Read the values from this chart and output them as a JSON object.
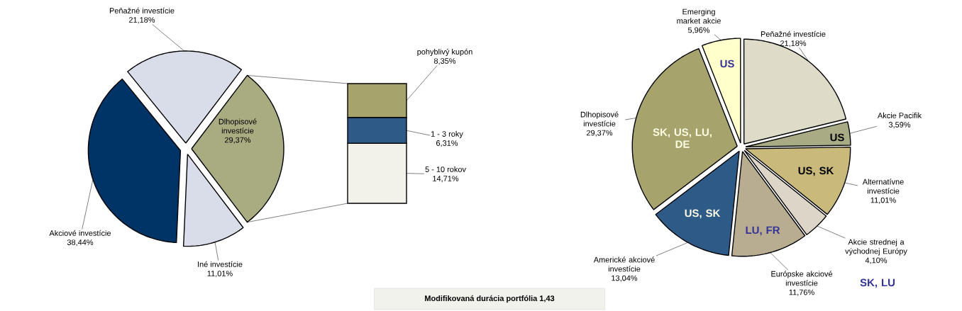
{
  "chart_data": [
    {
      "type": "pie",
      "categories": [
        "Peňažné investície",
        "Dlhopisové investície",
        "Iné investície",
        "Akciové investície"
      ],
      "values": [
        21.18,
        29.37,
        11.01,
        38.44
      ],
      "value_labels": [
        "21,18%",
        "29,37%",
        "11,01%",
        "38,44%"
      ],
      "colors": [
        "#d9dce9",
        "#a9ab80",
        "#d9dce9",
        "#003366"
      ]
    },
    {
      "type": "bar",
      "stacked": true,
      "categories": [
        null
      ],
      "series": [
        {
          "name": "5 - 10 rokov",
          "color": "#f2f2ea",
          "values": [
            14.71
          ],
          "value_labels": [
            "14,71%"
          ]
        },
        {
          "name": "1 - 3 roky",
          "color": "#2e5a87",
          "values": [
            6.31
          ],
          "value_labels": [
            "6,31%"
          ]
        },
        {
          "name": "pohyblivý kupón",
          "color": "#a6a36c",
          "values": [
            8.35
          ],
          "value_labels": [
            "8,35%"
          ]
        }
      ],
      "annotations": [
        "Modifikovaná durácia portfólia 1,43"
      ]
    },
    {
      "type": "pie",
      "categories": [
        "Emerging market akcie",
        "Peňažné investície",
        "Akcie Pacifik",
        "Alternatívne investície",
        "Akcie strednej a východnej Európy",
        "Európske akciové investície",
        "Americké akciové investície",
        "Dlhopisové investície"
      ],
      "values": [
        5.96,
        21.18,
        3.59,
        11.01,
        4.1,
        11.76,
        13.04,
        29.37
      ],
      "value_labels": [
        "5,96%",
        "21,18%",
        "3,59%",
        "11,01%",
        "4,10%",
        "11,76%",
        "13,04%",
        "29,37%"
      ],
      "colors": [
        "#ffffcc",
        "#dedcc8",
        "#a9ab84",
        "#c9b97a",
        "#ddd5c8",
        "#b8ad90",
        "#2e5a87",
        "#a6a36c"
      ],
      "annotations": [
        "US",
        "US",
        "US, SK",
        "SK, LU",
        "LU, FR",
        "US, SK",
        "SK, US, LU, DE"
      ]
    }
  ]
}
